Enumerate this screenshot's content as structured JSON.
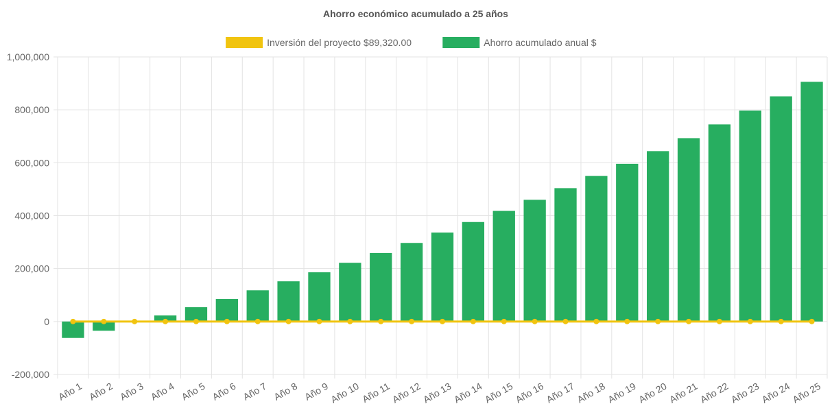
{
  "chart_data": {
    "type": "bar",
    "title": "Ahorro económico acumulado a 25 años",
    "categories": [
      "Año 1",
      "Año 2",
      "Año 3",
      "Año 4",
      "Año 5",
      "Año 6",
      "Año 7",
      "Año 8",
      "Año 9",
      "Año 10",
      "Año 11",
      "Año 12",
      "Año 13",
      "Año 14",
      "Año 15",
      "Año 16",
      "Año 17",
      "Año 18",
      "Año 19",
      "Año 20",
      "Año 21",
      "Año 22",
      "Año 23",
      "Año 24",
      "Año 25"
    ],
    "series": [
      {
        "name": "Inversión del proyecto $89,320.00",
        "type": "line",
        "color": "#f1c40f",
        "values": [
          0,
          0,
          0,
          0,
          0,
          0,
          0,
          0,
          0,
          0,
          0,
          0,
          0,
          0,
          0,
          0,
          0,
          0,
          0,
          0,
          0,
          0,
          0,
          0,
          0
        ]
      },
      {
        "name": "Ahorro acumulado anual $",
        "type": "bar",
        "color": "#27ae60",
        "values": [
          -62000,
          -35000,
          -2000,
          23000,
          54000,
          85000,
          118000,
          152000,
          186000,
          222000,
          259000,
          297000,
          336000,
          376000,
          418000,
          460000,
          504000,
          550000,
          596000,
          644000,
          693000,
          745000,
          797000,
          851000,
          906000
        ]
      }
    ],
    "ylim": [
      -200000,
      1000000
    ],
    "yticks": [
      -200000,
      0,
      200000,
      400000,
      600000,
      800000,
      1000000
    ],
    "ytick_labels": [
      "-200,000",
      "0",
      "200,000",
      "400,000",
      "600,000",
      "800,000",
      "1,000,000"
    ],
    "xlabel": "",
    "ylabel": "",
    "grid": true,
    "legend_position": "top"
  }
}
